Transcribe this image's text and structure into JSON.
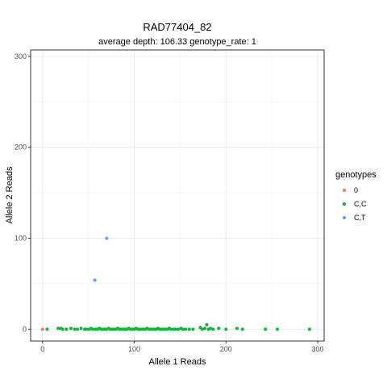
{
  "chart_data": {
    "type": "scatter",
    "title": "RAD77404_82",
    "subtitle": "average depth:  106.33  genotype_rate:  1",
    "xlabel": "Allele 1 Reads",
    "ylabel": "Allele 2 Reads",
    "xlim": [
      -13,
      307
    ],
    "ylim": [
      -13,
      307
    ],
    "x_ticks": [
      0,
      100,
      200,
      300
    ],
    "y_ticks": [
      0,
      100,
      200,
      300
    ],
    "grid": true,
    "legend": {
      "title": "genotypes",
      "position": "right"
    },
    "series": [
      {
        "name": "0",
        "color": "#F8766D",
        "points": [
          [
            0,
            0
          ]
        ]
      },
      {
        "name": "C,C",
        "color": "#00BA38",
        "points": [
          [
            5,
            0
          ],
          [
            17,
            1
          ],
          [
            20,
            1
          ],
          [
            22,
            0
          ],
          [
            26,
            0
          ],
          [
            31,
            1
          ],
          [
            35,
            0
          ],
          [
            38,
            0
          ],
          [
            42,
            1
          ],
          [
            46,
            0
          ],
          [
            48,
            0
          ],
          [
            51,
            0
          ],
          [
            53,
            1
          ],
          [
            55,
            0
          ],
          [
            58,
            0
          ],
          [
            60,
            0
          ],
          [
            62,
            1
          ],
          [
            64,
            0
          ],
          [
            66,
            0
          ],
          [
            68,
            0
          ],
          [
            70,
            0
          ],
          [
            72,
            1
          ],
          [
            74,
            0
          ],
          [
            76,
            0
          ],
          [
            78,
            0
          ],
          [
            80,
            0
          ],
          [
            82,
            1
          ],
          [
            84,
            0
          ],
          [
            86,
            0
          ],
          [
            88,
            0
          ],
          [
            90,
            0
          ],
          [
            92,
            0
          ],
          [
            94,
            1
          ],
          [
            96,
            0
          ],
          [
            98,
            0
          ],
          [
            100,
            0
          ],
          [
            102,
            1
          ],
          [
            104,
            0
          ],
          [
            106,
            0
          ],
          [
            108,
            0
          ],
          [
            110,
            0
          ],
          [
            112,
            0
          ],
          [
            114,
            1
          ],
          [
            116,
            0
          ],
          [
            118,
            0
          ],
          [
            120,
            0
          ],
          [
            122,
            0
          ],
          [
            124,
            0
          ],
          [
            126,
            1
          ],
          [
            128,
            0
          ],
          [
            130,
            0
          ],
          [
            132,
            0
          ],
          [
            134,
            0
          ],
          [
            136,
            0
          ],
          [
            138,
            1
          ],
          [
            140,
            0
          ],
          [
            143,
            0
          ],
          [
            145,
            0
          ],
          [
            148,
            0
          ],
          [
            151,
            1
          ],
          [
            153,
            0
          ],
          [
            156,
            0
          ],
          [
            160,
            0
          ],
          [
            164,
            0
          ],
          [
            172,
            2
          ],
          [
            174,
            0
          ],
          [
            177,
            1
          ],
          [
            179,
            5
          ],
          [
            181,
            0
          ],
          [
            183,
            1
          ],
          [
            186,
            0
          ],
          [
            192,
            1
          ],
          [
            200,
            0
          ],
          [
            212,
            1
          ],
          [
            218,
            0
          ],
          [
            243,
            0
          ],
          [
            256,
            0
          ],
          [
            291,
            0
          ]
        ]
      },
      {
        "name": "C,T",
        "color": "#619CFF",
        "points": [
          [
            57,
            54
          ],
          [
            70,
            100
          ]
        ]
      }
    ]
  }
}
